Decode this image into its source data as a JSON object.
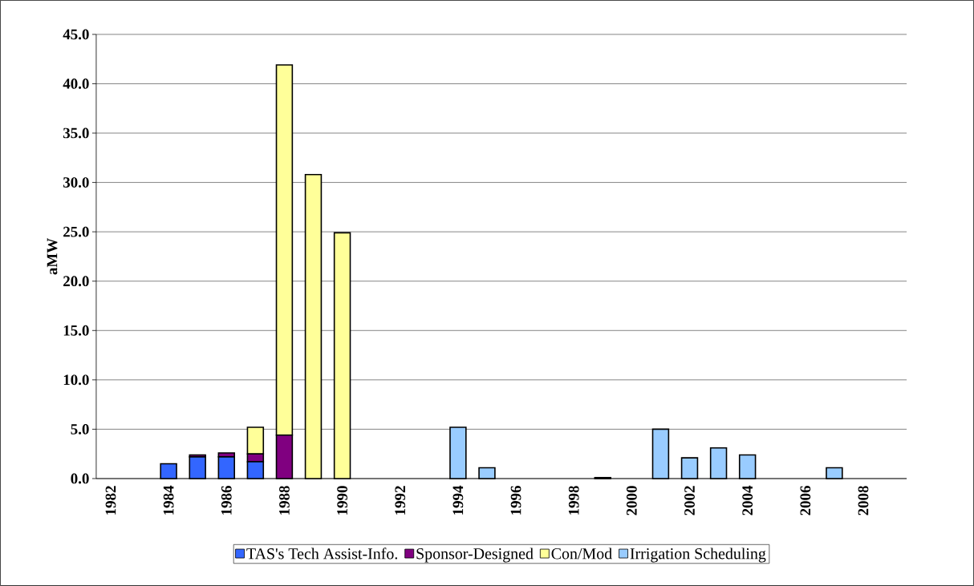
{
  "chart_data": {
    "type": "bar",
    "stacked": true,
    "ylabel": "aMW",
    "categories": [
      "1982",
      null,
      "1984",
      null,
      "1986",
      null,
      "1988",
      null,
      "1990",
      null,
      "1992",
      null,
      "1994",
      null,
      "1996",
      null,
      "1998",
      null,
      "2000",
      null,
      "2002",
      null,
      "2004",
      null,
      "2006",
      null,
      "2008",
      null
    ],
    "series": [
      {
        "name": "TAS's Tech Assist-Info.",
        "color": "#3366ff",
        "values": [
          null,
          null,
          1.5,
          2.2,
          2.2,
          1.7,
          null,
          null,
          null,
          null,
          null,
          null,
          null,
          null,
          null,
          null,
          null,
          null,
          null,
          null,
          null,
          null,
          null,
          null,
          null,
          null,
          null,
          null
        ]
      },
      {
        "name": "Sponsor-Designed",
        "color": "#800080",
        "values": [
          null,
          null,
          null,
          0.2,
          0.4,
          0.8,
          4.4,
          null,
          null,
          null,
          null,
          null,
          null,
          null,
          null,
          null,
          null,
          0.1,
          null,
          null,
          null,
          null,
          null,
          null,
          null,
          null,
          null,
          null
        ]
      },
      {
        "name": "Con/Mod",
        "color": "#ffff99",
        "values": [
          null,
          null,
          null,
          null,
          null,
          2.7,
          37.5,
          30.8,
          24.9,
          null,
          null,
          null,
          null,
          null,
          null,
          null,
          null,
          null,
          null,
          null,
          null,
          null,
          null,
          null,
          null,
          null,
          null,
          null
        ]
      },
      {
        "name": "Irrigation Scheduling",
        "color": "#99ccff",
        "values": [
          null,
          null,
          null,
          null,
          null,
          null,
          null,
          null,
          null,
          null,
          null,
          null,
          5.2,
          1.1,
          null,
          null,
          null,
          null,
          null,
          5.0,
          2.1,
          3.1,
          2.4,
          null,
          null,
          1.1,
          null,
          null
        ]
      }
    ],
    "ylim": [
      0,
      45
    ],
    "yticks": [
      {
        "value": 0,
        "label": "0.0"
      },
      {
        "value": 5,
        "label": "5.0"
      },
      {
        "value": 10,
        "label": "10.0"
      },
      {
        "value": 15,
        "label": "15.0"
      },
      {
        "value": 20,
        "label": "20.0"
      },
      {
        "value": 25,
        "label": "25.0"
      },
      {
        "value": 30,
        "label": "30.0"
      },
      {
        "value": 35,
        "label": "35.0"
      },
      {
        "value": 40,
        "label": "40.0"
      },
      {
        "value": 45,
        "label": "45.0"
      }
    ],
    "grid": "y",
    "legend": "bottom"
  }
}
